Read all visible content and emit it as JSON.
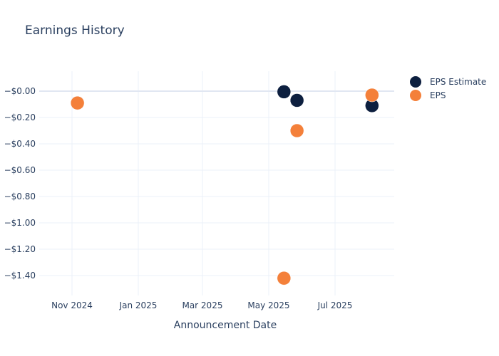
{
  "chart_data": {
    "type": "scatter",
    "title": "Earnings History",
    "xlabel": "Announcement Date",
    "ylabel": "",
    "x_ticks": [
      "Nov 2024",
      "Jan 2025",
      "Mar 2025",
      "May 2025",
      "Jul 2025"
    ],
    "y_ticks": [
      "−$0.00",
      "−$0.20",
      "−$0.40",
      "−$0.60",
      "−$0.80",
      "−$1.00",
      "−$1.20",
      "−$1.40"
    ],
    "ylim": [
      -1.55,
      0.15
    ],
    "grid": true,
    "legend_position": "right",
    "x": [
      "2024-11-06",
      "2025-05-15",
      "2025-05-27",
      "2025-08-04"
    ],
    "series": [
      {
        "name": "EPS Estimate",
        "color": "#0d1f3f",
        "values": [
          -0.09,
          -0.005,
          -0.07,
          -0.11
        ]
      },
      {
        "name": "EPS",
        "color": "#f4803a",
        "values": [
          -0.09,
          -1.42,
          -0.3,
          -0.03
        ]
      }
    ]
  },
  "legend": {
    "items": [
      {
        "label": "EPS Estimate",
        "color": "#0d1f3f"
      },
      {
        "label": "EPS",
        "color": "#f4803a"
      }
    ]
  }
}
